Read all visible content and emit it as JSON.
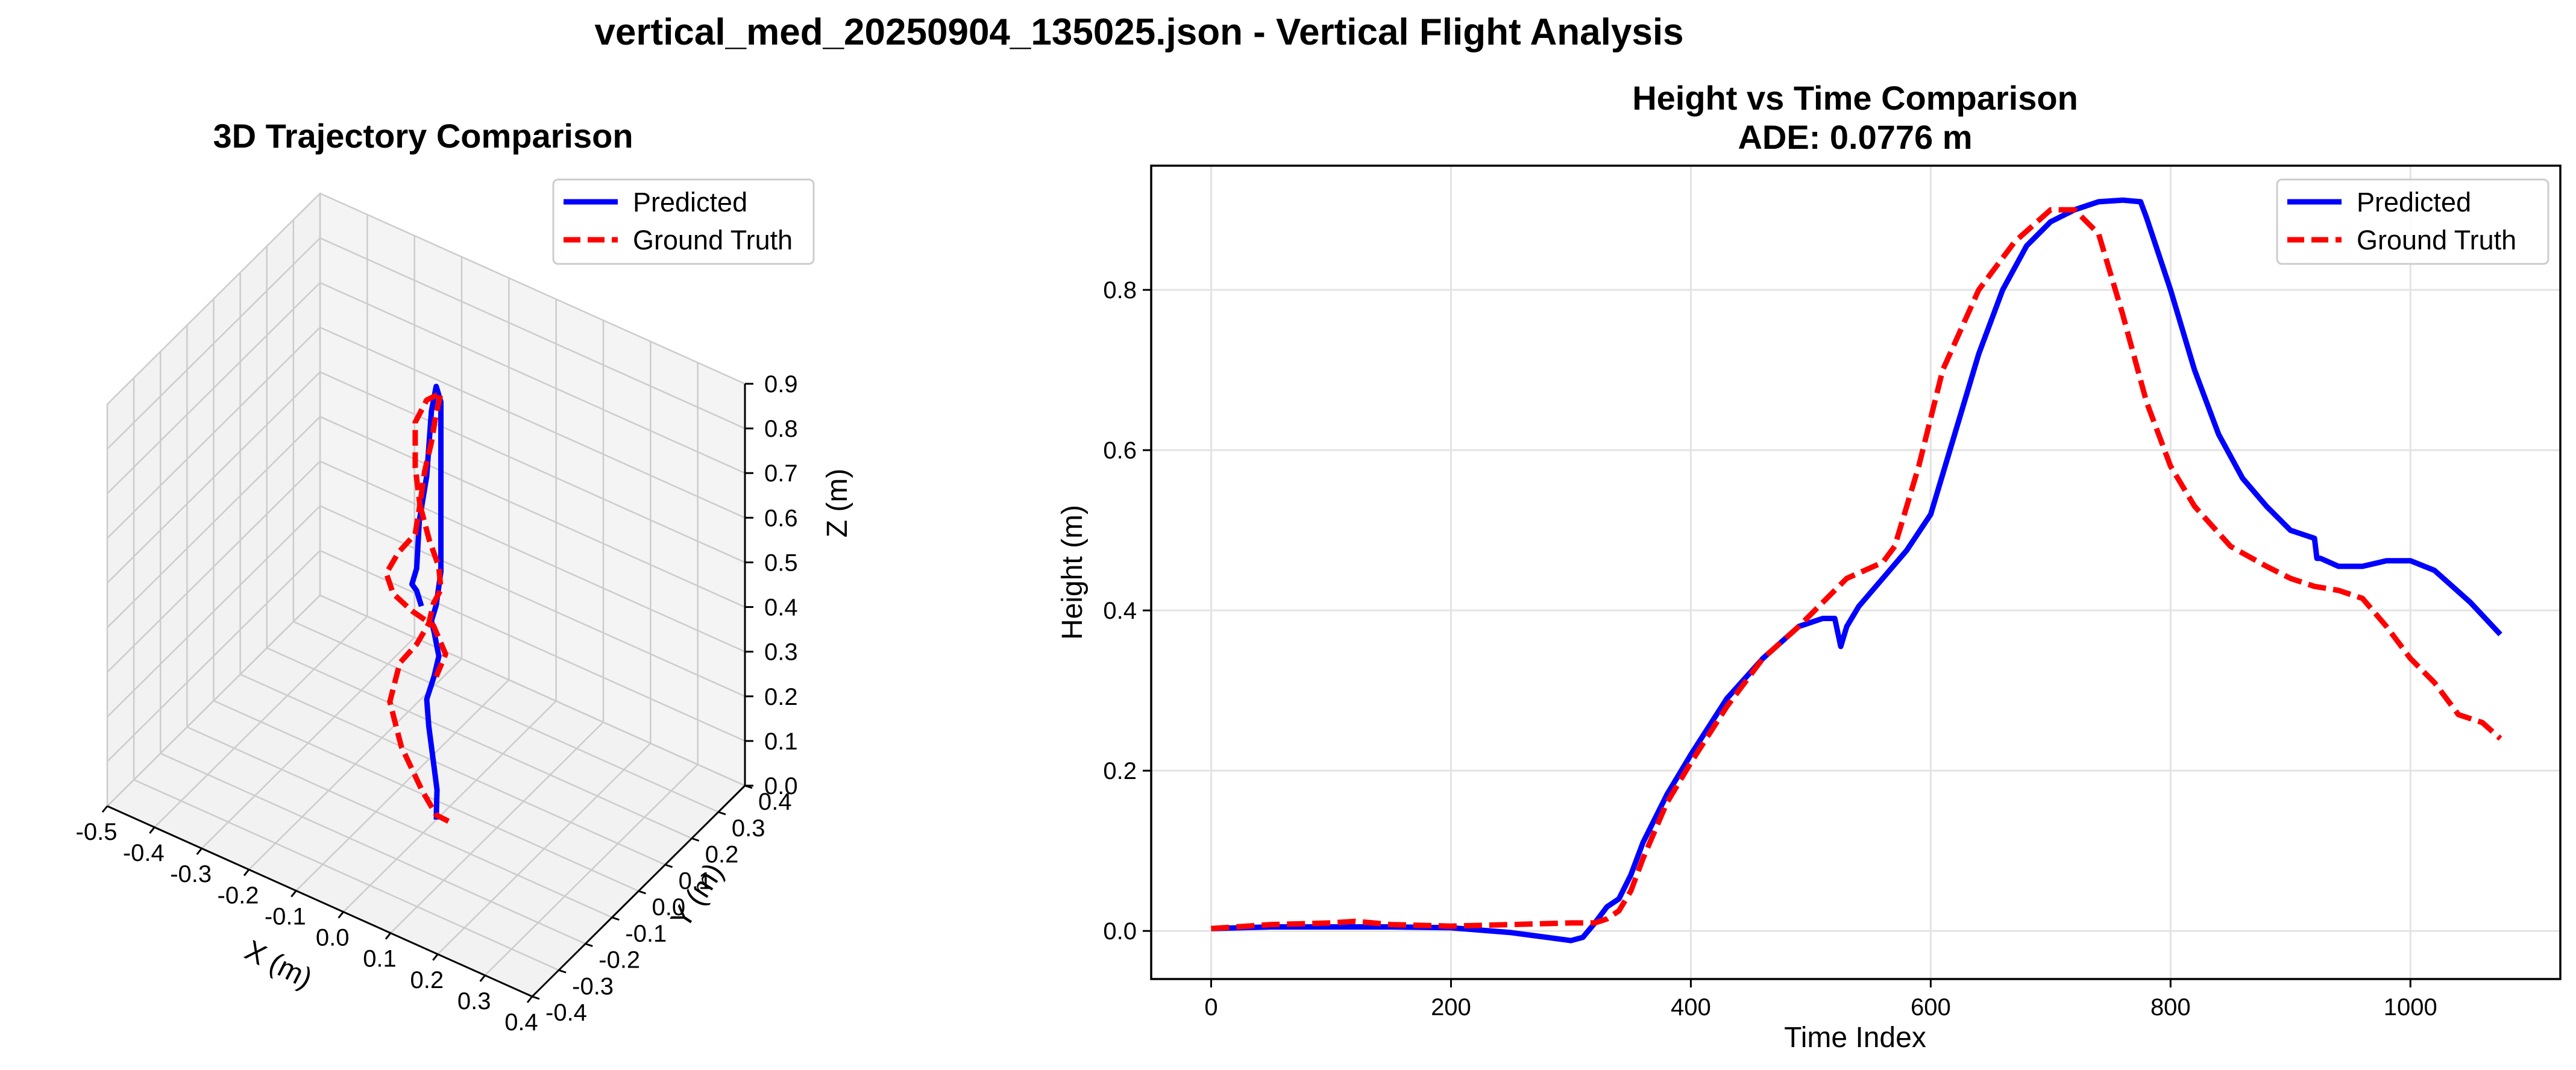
{
  "figure": {
    "suptitle": "vertical_med_20250904_135025.json - Vertical Flight Analysis"
  },
  "colors": {
    "predicted": "#0000ff",
    "ground_truth": "#ff0000",
    "grid": "#e3e3e3",
    "pane": "#f2f2f2"
  },
  "chart_data": [
    {
      "type": "line3d",
      "title": "3D Trajectory Comparison",
      "xlabel": "X (m)",
      "ylabel": "Y (m)",
      "zlabel": "Z (m)",
      "xlim": [
        -0.5,
        0.4
      ],
      "ylim": [
        -0.4,
        0.4
      ],
      "zlim": [
        0.0,
        0.9
      ],
      "x_ticks": [
        "-0.5",
        "-0.4",
        "-0.3",
        "-0.2",
        "-0.1",
        "0.0",
        "0.1",
        "0.2",
        "0.3",
        "0.4"
      ],
      "y_ticks": [
        "-0.4",
        "-0.3",
        "-0.2",
        "-0.1",
        "0.0",
        "0.1",
        "0.2",
        "0.3",
        "0.4"
      ],
      "z_ticks": [
        "0.0",
        "0.1",
        "0.2",
        "0.3",
        "0.4",
        "0.5",
        "0.6",
        "0.7",
        "0.8",
        "0.9"
      ],
      "grid": true,
      "legend": {
        "position": "upper-right",
        "entries": [
          "Predicted",
          "Ground Truth"
        ]
      },
      "series": [
        {
          "name": "Predicted",
          "style": "solid",
          "points": [
            [
              0.0,
              -0.05,
              0.0
            ],
            [
              0.0,
              -0.05,
              0.02
            ],
            [
              -0.01,
              -0.03,
              0.05
            ],
            [
              -0.03,
              -0.01,
              0.1
            ],
            [
              -0.05,
              0.01,
              0.15
            ],
            [
              -0.06,
              0.02,
              0.2
            ],
            [
              -0.05,
              0.03,
              0.25
            ],
            [
              -0.04,
              0.03,
              0.3
            ],
            [
              -0.05,
              0.03,
              0.35
            ],
            [
              -0.05,
              0.02,
              0.38
            ],
            [
              -0.04,
              0.02,
              0.42
            ],
            [
              -0.03,
              0.02,
              0.5
            ],
            [
              -0.03,
              0.02,
              0.6
            ],
            [
              -0.03,
              0.02,
              0.7
            ],
            [
              -0.03,
              0.02,
              0.8
            ],
            [
              -0.03,
              0.02,
              0.88
            ],
            [
              -0.04,
              0.02,
              0.91
            ],
            [
              -0.05,
              0.02,
              0.85
            ],
            [
              -0.06,
              0.02,
              0.7
            ],
            [
              -0.07,
              0.01,
              0.6
            ],
            [
              -0.07,
              0.0,
              0.5
            ],
            [
              -0.08,
              0.0,
              0.46
            ],
            [
              -0.07,
              0.0,
              0.45
            ],
            [
              -0.06,
              0.0,
              0.42
            ]
          ]
        },
        {
          "name": "Ground Truth",
          "style": "dashed",
          "points": [
            [
              0.02,
              -0.04,
              0.0
            ],
            [
              0.0,
              -0.05,
              0.01
            ],
            [
              -0.03,
              -0.05,
              0.05
            ],
            [
              -0.08,
              -0.04,
              0.12
            ],
            [
              -0.11,
              -0.03,
              0.2
            ],
            [
              -0.1,
              -0.01,
              0.28
            ],
            [
              -0.07,
              0.0,
              0.33
            ],
            [
              -0.05,
              0.01,
              0.38
            ],
            [
              -0.04,
              0.01,
              0.43
            ],
            [
              -0.03,
              0.02,
              0.46
            ],
            [
              -0.04,
              0.03,
              0.5
            ],
            [
              -0.06,
              0.03,
              0.55
            ],
            [
              -0.08,
              0.03,
              0.62
            ],
            [
              -0.07,
              0.03,
              0.7
            ],
            [
              -0.05,
              0.02,
              0.78
            ],
            [
              -0.04,
              0.02,
              0.85
            ],
            [
              -0.03,
              0.02,
              0.9
            ],
            [
              -0.06,
              0.02,
              0.87
            ],
            [
              -0.09,
              0.03,
              0.8
            ],
            [
              -0.09,
              0.03,
              0.7
            ],
            [
              -0.08,
              0.03,
              0.62
            ],
            [
              -0.09,
              0.03,
              0.55
            ],
            [
              -0.12,
              0.02,
              0.5
            ],
            [
              -0.14,
              0.01,
              0.45
            ],
            [
              -0.12,
              0.0,
              0.42
            ],
            [
              -0.08,
              0.0,
              0.4
            ],
            [
              -0.04,
              0.01,
              0.38
            ],
            [
              -0.02,
              0.02,
              0.32
            ],
            [
              -0.04,
              0.02,
              0.26
            ]
          ]
        }
      ]
    },
    {
      "type": "line",
      "title": "Height vs Time Comparison",
      "subtitle": "ADE: 0.0776 m",
      "xlabel": "Time Index",
      "ylabel": "Height (m)",
      "xlim": [
        -50,
        1125
      ],
      "ylim": [
        -0.06,
        0.955
      ],
      "x_ticks": [
        0,
        200,
        400,
        600,
        800,
        1000
      ],
      "y_ticks": [
        0.0,
        0.2,
        0.4,
        0.6,
        0.8
      ],
      "y_tick_labels": [
        "0.0",
        "0.2",
        "0.4",
        "0.6",
        "0.8"
      ],
      "grid": true,
      "legend": {
        "position": "upper-right",
        "entries": [
          "Predicted",
          "Ground Truth"
        ]
      },
      "series": [
        {
          "name": "Predicted",
          "style": "solid",
          "x": [
            0,
            50,
            100,
            150,
            200,
            250,
            280,
            300,
            310,
            320,
            330,
            340,
            350,
            360,
            380,
            400,
            430,
            460,
            490,
            510,
            520,
            525,
            530,
            540,
            560,
            580,
            600,
            620,
            640,
            660,
            680,
            700,
            720,
            740,
            760,
            775,
            780,
            800,
            820,
            840,
            860,
            880,
            900,
            920,
            922,
            925,
            940,
            960,
            980,
            1000,
            1020,
            1050,
            1075
          ],
          "y": [
            0.003,
            0.005,
            0.005,
            0.005,
            0.004,
            -0.002,
            -0.008,
            -0.012,
            -0.008,
            0.01,
            0.03,
            0.04,
            0.07,
            0.11,
            0.17,
            0.22,
            0.29,
            0.34,
            0.38,
            0.39,
            0.39,
            0.355,
            0.38,
            0.405,
            0.44,
            0.475,
            0.52,
            0.62,
            0.72,
            0.8,
            0.855,
            0.885,
            0.9,
            0.91,
            0.912,
            0.91,
            0.89,
            0.8,
            0.7,
            0.62,
            0.565,
            0.53,
            0.5,
            0.49,
            0.465,
            0.465,
            0.455,
            0.455,
            0.462,
            0.462,
            0.45,
            0.41,
            0.37
          ]
        },
        {
          "name": "Ground Truth",
          "style": "dashed",
          "x": [
            0,
            50,
            100,
            120,
            150,
            200,
            250,
            300,
            320,
            330,
            340,
            350,
            360,
            380,
            400,
            430,
            460,
            490,
            510,
            530,
            560,
            570,
            590,
            610,
            640,
            670,
            700,
            720,
            740,
            760,
            780,
            800,
            820,
            850,
            880,
            900,
            920,
            940,
            960,
            980,
            1000,
            1020,
            1040,
            1060,
            1075
          ],
          "y": [
            0.003,
            0.008,
            0.01,
            0.012,
            0.008,
            0.006,
            0.008,
            0.01,
            0.01,
            0.015,
            0.025,
            0.05,
            0.09,
            0.16,
            0.21,
            0.28,
            0.34,
            0.38,
            0.41,
            0.44,
            0.46,
            0.48,
            0.58,
            0.7,
            0.8,
            0.86,
            0.9,
            0.9,
            0.87,
            0.77,
            0.66,
            0.58,
            0.53,
            0.48,
            0.455,
            0.44,
            0.43,
            0.425,
            0.415,
            0.38,
            0.34,
            0.31,
            0.27,
            0.26,
            0.24
          ]
        }
      ]
    }
  ]
}
